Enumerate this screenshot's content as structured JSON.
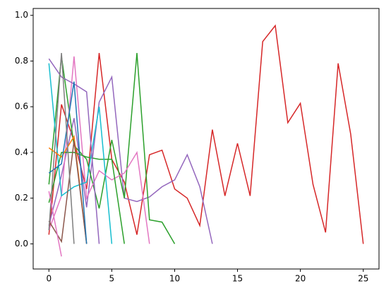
{
  "chart_data": {
    "type": "line",
    "xlim": [
      -1.25,
      26.25
    ],
    "xticks": [
      0,
      5,
      10,
      15,
      20,
      25
    ],
    "ylim": [
      -0.11,
      1.03
    ],
    "yticks": [
      0.0,
      0.2,
      0.4,
      0.6,
      0.8,
      1.0
    ],
    "series": [
      {
        "color": "#d62728",
        "values": [
          0.04,
          0.61,
          0.45,
          0.24,
          0.835,
          0.37,
          0.27,
          0.04,
          0.39,
          0.41,
          0.24,
          0.2,
          0.08,
          0.5,
          0.21,
          0.44,
          0.21,
          0.885,
          0.955,
          0.53,
          0.615,
          0.26,
          0.05,
          0.79,
          0.48,
          0.0
        ]
      },
      {
        "color": "#9467bd",
        "values": [
          0.08,
          0.3,
          0.55,
          0.16,
          0.62,
          0.73,
          0.2,
          0.185,
          0.205,
          0.25,
          0.28,
          0.39,
          0.25,
          0.0
        ]
      },
      {
        "color": "#2ca02c",
        "values": [
          0.26,
          0.82,
          0.43,
          0.37,
          0.155,
          0.455,
          0.2,
          0.835,
          0.105,
          0.095,
          0.0
        ]
      },
      {
        "color": "#e377c2",
        "values": [
          0.06,
          0.21,
          0.82,
          0.2,
          0.32,
          0.28,
          0.31,
          0.4,
          0.0
        ]
      },
      {
        "color": "#2ca02c",
        "values": [
          0.18,
          0.4,
          0.4,
          0.38,
          0.37,
          0.37,
          0.0
        ]
      },
      {
        "color": "#17becf",
        "values": [
          0.79,
          0.21,
          0.25,
          0.27,
          0.6,
          0.0
        ]
      },
      {
        "color": "#9467bd",
        "values": [
          0.81,
          0.73,
          0.7,
          0.665,
          0.0
        ]
      },
      {
        "color": "#ff7f0e",
        "values": [
          0.42,
          0.38,
          0.47,
          0.0
        ]
      },
      {
        "color": "#8c564b",
        "values": [
          0.1,
          0.01,
          0.45,
          0.0
        ]
      },
      {
        "color": "#1f77b4",
        "values": [
          0.31,
          0.35,
          0.71,
          0.0
        ]
      },
      {
        "color": "#7f7f7f",
        "values": [
          0.06,
          0.835,
          0.0
        ]
      },
      {
        "color": "#e377c2",
        "values": [
          0.23,
          -0.055
        ]
      }
    ]
  }
}
